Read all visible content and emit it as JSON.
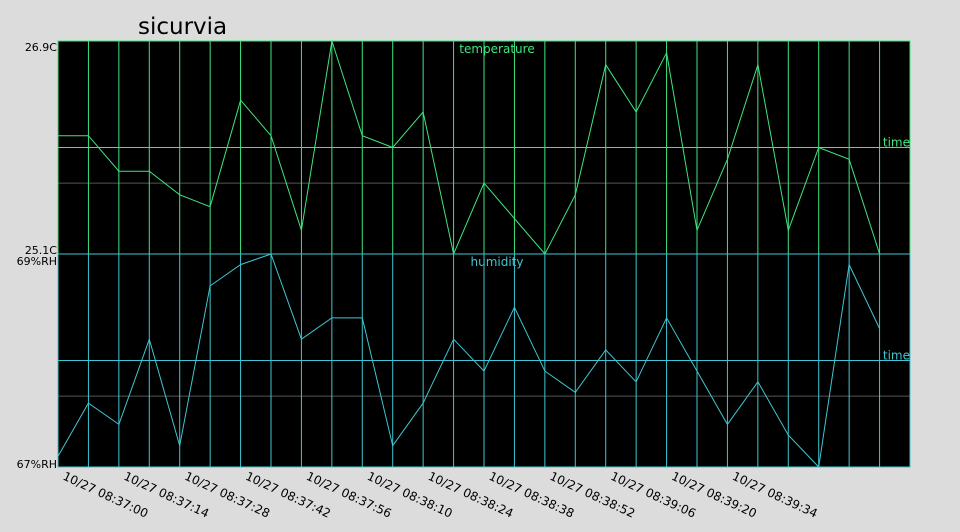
{
  "title": "sicurvia",
  "colors": {
    "background": "#dcdcdc",
    "plot_bg": "#000000",
    "temperature": "#3ee67e",
    "humidity": "#3fc6d2",
    "grid_mid": "#555555"
  },
  "chart_data": [
    {
      "type": "line",
      "name": "temperature",
      "series_label": "temperature",
      "axis_label": "time",
      "ylim": [
        25.1,
        26.9
      ],
      "ytick_labels": [
        "26.9C",
        "25.1C"
      ],
      "x_tick_labels": [
        "10/27 08:37:00",
        "10/27 08:37:14",
        "10/27 08:37:28",
        "10/27 08:37:42",
        "10/27 08:37:56",
        "10/27 08:38:10",
        "10/27 08:38:24",
        "10/27 08:38:38",
        "10/27 08:38:52",
        "10/27 08:39:06",
        "10/27 08:39:20",
        "10/27 08:39:34"
      ],
      "values": [
        26.1,
        26.1,
        25.8,
        25.8,
        25.6,
        25.5,
        26.4,
        26.1,
        25.3,
        26.9,
        26.1,
        26.0,
        26.3,
        25.1,
        25.7,
        25.4,
        25.1,
        25.6,
        26.7,
        26.3,
        26.8,
        25.3,
        25.9,
        26.7,
        25.3,
        26.0,
        25.9,
        25.1
      ]
    },
    {
      "type": "line",
      "name": "humidity",
      "series_label": "humidity",
      "axis_label": "time",
      "ylim": [
        67,
        69
      ],
      "ytick_labels": [
        "69%RH",
        "67%RH"
      ],
      "x_tick_labels": [
        "10/27 08:37:00",
        "10/27 08:37:14",
        "10/27 08:37:28",
        "10/27 08:37:42",
        "10/27 08:37:56",
        "10/27 08:38:10",
        "10/27 08:38:24",
        "10/27 08:38:38",
        "10/27 08:38:52",
        "10/27 08:39:06",
        "10/27 08:39:20",
        "10/27 08:39:34"
      ],
      "values": [
        67.1,
        67.6,
        67.4,
        68.2,
        67.2,
        68.7,
        68.9,
        69.0,
        68.2,
        68.4,
        68.4,
        67.2,
        67.6,
        68.2,
        67.9,
        68.5,
        67.9,
        67.7,
        68.1,
        67.8,
        68.4,
        67.9,
        67.4,
        67.8,
        67.3,
        67.0,
        68.9,
        68.3
      ]
    }
  ]
}
